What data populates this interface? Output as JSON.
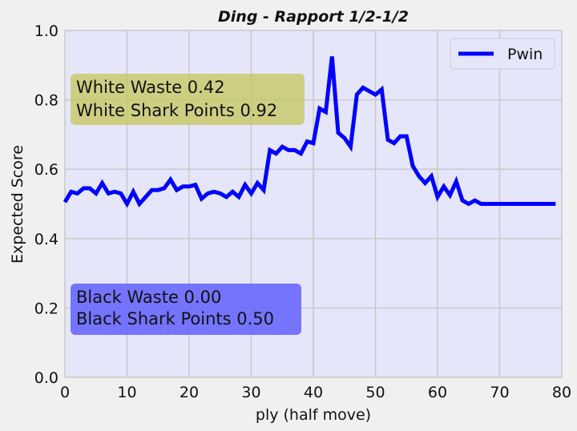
{
  "chart_data": {
    "type": "line",
    "title": "Ding - Rapport 1/2-1/2",
    "xlabel": "ply (half move)",
    "ylabel": "Expected Score",
    "xlim": [
      0,
      80
    ],
    "ylim": [
      0.0,
      1.0
    ],
    "xticks": [
      0,
      10,
      20,
      30,
      40,
      50,
      60,
      70,
      80
    ],
    "yticks": [
      "0.0",
      "0.2",
      "0.4",
      "0.6",
      "0.8",
      "1.0"
    ],
    "grid": true,
    "legend_position": "upper right",
    "series": [
      {
        "name": "Pwin",
        "color": "#0000ff",
        "x": [
          0,
          1,
          2,
          3,
          4,
          5,
          6,
          7,
          8,
          9,
          10,
          11,
          12,
          13,
          14,
          15,
          16,
          17,
          18,
          19,
          20,
          21,
          22,
          23,
          24,
          25,
          26,
          27,
          28,
          29,
          30,
          31,
          32,
          33,
          34,
          35,
          36,
          37,
          38,
          39,
          40,
          41,
          42,
          43,
          44,
          45,
          46,
          47,
          48,
          49,
          50,
          51,
          52,
          53,
          54,
          55,
          56,
          57,
          58,
          59,
          60,
          61,
          62,
          63,
          64,
          65,
          66,
          67,
          68,
          69,
          70,
          71,
          72,
          73,
          74,
          75,
          76,
          77,
          78,
          79
        ],
        "y": [
          0.505,
          0.535,
          0.53,
          0.545,
          0.545,
          0.53,
          0.56,
          0.53,
          0.535,
          0.53,
          0.5,
          0.535,
          0.5,
          0.52,
          0.54,
          0.54,
          0.545,
          0.57,
          0.54,
          0.55,
          0.55,
          0.555,
          0.515,
          0.53,
          0.535,
          0.53,
          0.52,
          0.535,
          0.52,
          0.555,
          0.53,
          0.56,
          0.54,
          0.655,
          0.645,
          0.665,
          0.655,
          0.655,
          0.645,
          0.68,
          0.675,
          0.775,
          0.765,
          0.925,
          0.705,
          0.69,
          0.665,
          0.815,
          0.835,
          0.825,
          0.815,
          0.83,
          0.685,
          0.675,
          0.695,
          0.695,
          0.61,
          0.58,
          0.56,
          0.58,
          0.52,
          0.55,
          0.525,
          0.565,
          0.51,
          0.5,
          0.51,
          0.5,
          0.5,
          0.5,
          0.5,
          0.5,
          0.5,
          0.5,
          0.5,
          0.5,
          0.5,
          0.5,
          0.5,
          0.5
        ]
      }
    ],
    "annotations": [
      {
        "lines": [
          "White Waste 0.42",
          "White Shark Points 0.92"
        ],
        "box_color": "#c8c864"
      },
      {
        "lines": [
          "Black Waste 0.00",
          "Black Shark Points 0.50"
        ],
        "box_color": "#6464ff"
      }
    ]
  }
}
